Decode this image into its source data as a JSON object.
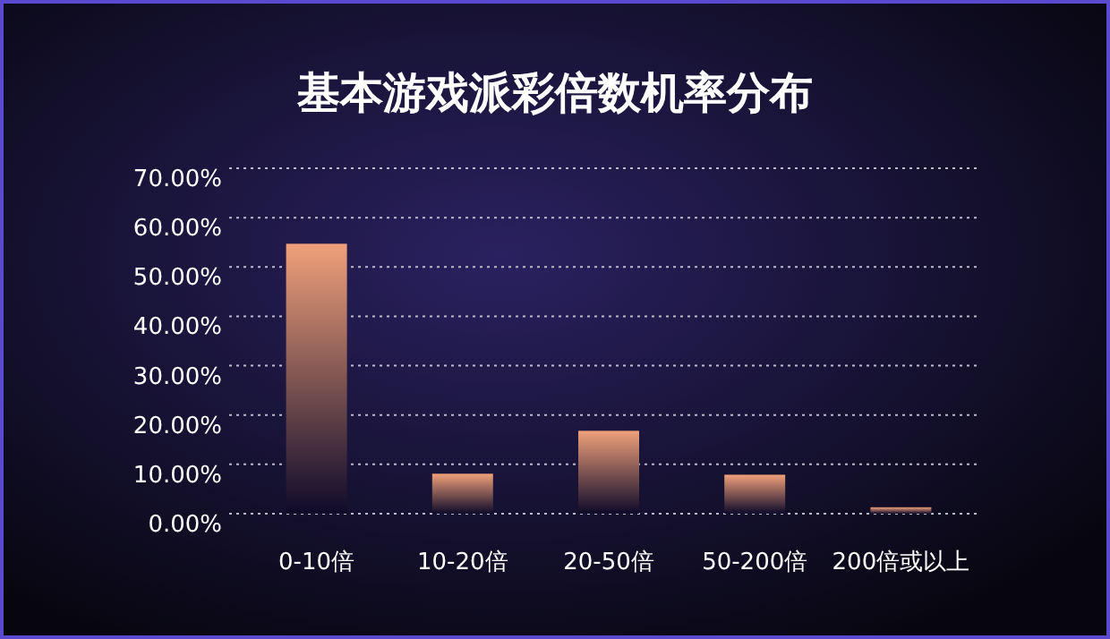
{
  "chart_data": {
    "type": "bar",
    "title": "基本游戏派彩倍数机率分布",
    "categories": [
      "0-10倍",
      "10-20倍",
      "20-50倍",
      "50-200倍",
      "200倍或以上"
    ],
    "values": [
      54.7,
      8.1,
      16.8,
      7.9,
      1.3
    ],
    "color": "#f0a07a",
    "ylim": [
      0,
      70
    ],
    "yticks": [
      {
        "value": 0,
        "label": "0.00%"
      },
      {
        "value": 10,
        "label": "10.00%"
      },
      {
        "value": 20,
        "label": "20.00%"
      },
      {
        "value": 30,
        "label": "30.00%"
      },
      {
        "value": 40,
        "label": "40.00%"
      },
      {
        "value": 50,
        "label": "50.00%"
      },
      {
        "value": 60,
        "label": "60.00%"
      },
      {
        "value": 70,
        "label": "70.00%"
      }
    ],
    "grid": "y"
  }
}
